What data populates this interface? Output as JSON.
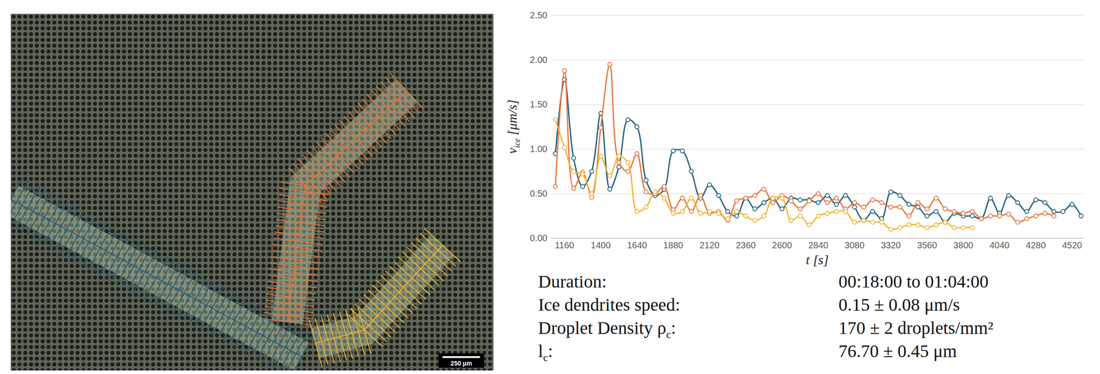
{
  "chart_data": {
    "type": "line",
    "xlabel": "t [s]",
    "ylabel": [
      {
        "text": "v"
      },
      {
        "sub": "ice"
      },
      {
        "text": " [μm/s]"
      }
    ],
    "x": [
      1100,
      1160,
      1220,
      1280,
      1340,
      1400,
      1460,
      1520,
      1580,
      1640,
      1700,
      1760,
      1820,
      1880,
      1940,
      2000,
      2060,
      2120,
      2180,
      2240,
      2300,
      2360,
      2420,
      2480,
      2540,
      2600,
      2660,
      2720,
      2780,
      2840,
      2900,
      2960,
      3020,
      3080,
      3140,
      3200,
      3260,
      3320,
      3380,
      3440,
      3500,
      3560,
      3620,
      3680,
      3740,
      3800,
      3860,
      3920,
      3980,
      4040,
      4100,
      4160,
      4220,
      4280,
      4340,
      4400,
      4460,
      4520,
      4580
    ],
    "series": [
      {
        "color": "#1f5d7c",
        "marker": "circle",
        "line_style": "solid",
        "values": [
          0.95,
          1.78,
          0.9,
          0.58,
          0.75,
          1.4,
          0.55,
          0.8,
          1.33,
          1.25,
          0.65,
          0.48,
          0.55,
          0.98,
          0.98,
          0.75,
          0.45,
          0.6,
          0.48,
          0.3,
          0.25,
          0.45,
          0.33,
          0.4,
          0.45,
          0.33,
          0.45,
          0.43,
          0.43,
          0.4,
          0.48,
          0.38,
          0.48,
          0.35,
          0.2,
          0.3,
          0.22,
          0.52,
          0.48,
          0.38,
          0.35,
          0.25,
          0.3,
          0.18,
          0.28,
          0.25,
          0.25,
          0.22,
          0.45,
          0.28,
          0.48,
          0.4,
          0.3,
          0.43,
          0.4,
          0.3,
          0.3,
          0.38,
          0.25
        ]
      },
      {
        "color": "#e8743b",
        "marker": "circle",
        "line_style": "solid",
        "values": [
          0.58,
          1.88,
          0.56,
          0.74,
          0.46,
          1.24,
          1.95,
          0.85,
          0.75,
          0.95,
          0.52,
          0.5,
          0.58,
          0.32,
          0.45,
          0.3,
          0.48,
          0.28,
          0.3,
          0.2,
          0.42,
          0.45,
          0.48,
          0.55,
          0.4,
          0.48,
          0.42,
          0.33,
          0.42,
          0.5,
          0.4,
          0.45,
          0.33,
          0.4,
          0.35,
          0.43,
          0.4,
          0.35,
          0.35,
          0.25,
          0.4,
          0.33,
          0.45,
          0.33,
          0.3,
          0.28,
          0.3,
          0.22,
          0.25,
          0.25,
          0.27,
          0.18,
          0.22,
          0.25,
          0.28,
          0.25,
          null,
          null,
          null
        ]
      },
      {
        "color": "#f2b32d",
        "marker": "circle",
        "line_style": "solid",
        "values": [
          1.33,
          1.02,
          0.75,
          0.72,
          0.5,
          0.92,
          0.7,
          0.92,
          0.85,
          0.3,
          0.35,
          0.52,
          0.45,
          0.28,
          0.3,
          0.45,
          0.28,
          0.3,
          0.28,
          0.22,
          0.3,
          0.25,
          0.2,
          0.25,
          0.45,
          0.45,
          0.2,
          0.25,
          0.15,
          0.25,
          0.28,
          0.3,
          0.3,
          0.18,
          0.2,
          0.18,
          0.18,
          0.1,
          0.12,
          0.15,
          0.15,
          0.12,
          0.15,
          0.18,
          0.12,
          0.12,
          0.12,
          null,
          null,
          null,
          null,
          null,
          null,
          null,
          null,
          null,
          null,
          null,
          null
        ]
      }
    ],
    "xlim": [
      1070,
      4600
    ],
    "ylim": [
      0,
      2.5
    ],
    "xticks": [
      1160,
      1400,
      1640,
      1880,
      2120,
      2360,
      2600,
      2840,
      3080,
      3320,
      3560,
      3800,
      4040,
      4280,
      4520
    ],
    "yticks": [
      {
        "value": 0,
        "label": "0.00"
      },
      {
        "value": 0.5,
        "label": "0.50"
      },
      {
        "value": 1,
        "label": "1.00"
      },
      {
        "value": 1.5,
        "label": "1.50"
      },
      {
        "value": 2,
        "label": "2.00"
      },
      {
        "value": 2.5,
        "label": "2.50"
      }
    ],
    "grid": true
  },
  "image": {
    "scale_bar": "250 µm"
  },
  "info": {
    "rows": [
      [
        [
          {
            "text": "Duration:"
          }
        ],
        [
          {
            "text": "00:18:00 to 01:04:00"
          }
        ]
      ],
      [
        [
          {
            "text": "Ice dendrites speed:"
          }
        ],
        [
          {
            "text": "0.15 ± 0.08 μm/s"
          }
        ]
      ],
      [
        [
          {
            "text": "Droplet Density ρ"
          },
          {
            "sub": "c"
          },
          {
            "text": ":"
          }
        ],
        [
          {
            "text": "170 ± 2 droplets/mm²"
          }
        ]
      ],
      [
        [
          {
            "text": "l"
          },
          {
            "sub": "c"
          },
          {
            "text": ":"
          }
        ],
        [
          {
            "text": "76.70 ± 0.45  μm"
          }
        ]
      ]
    ]
  }
}
